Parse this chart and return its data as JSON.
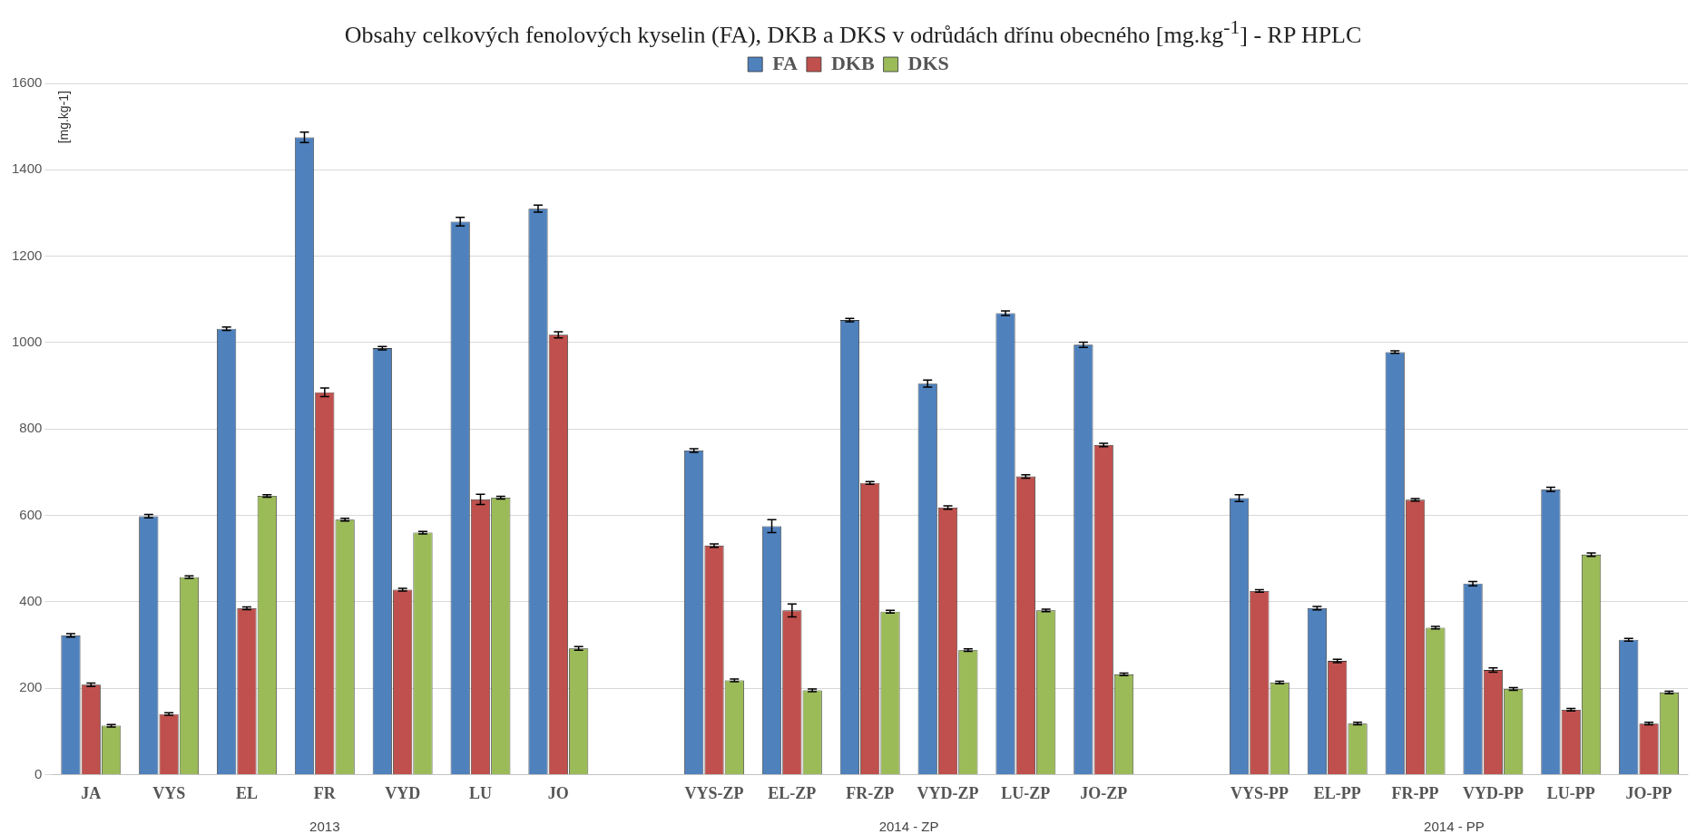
{
  "chart_data": {
    "type": "bar",
    "title": "Obsahy celkových fenolových kyselin (FA), DKB a DKS v odrůdách dřínu obecného [mg.kg$^{-1}$] - RP HPLC",
    "ylabel": "[mg.kg-1]",
    "categories": [
      "JA",
      "VYS",
      "EL",
      "FR",
      "VYD",
      "LU",
      "JO",
      null,
      "VYS-ZP",
      "EL-ZP",
      "FR-ZP",
      "VYD-ZP",
      "LU-ZP",
      "JO-ZP",
      null,
      "VYS-PP",
      "EL-PP",
      "FR-PP",
      "VYD-PP",
      "LU-PP",
      "JO-PP"
    ],
    "series": [
      {
        "name": "FA",
        "color": "#4f81bd",
        "values": [
          322,
          598,
          1032,
          1475,
          987,
          1280,
          1310,
          null,
          750,
          575,
          1052,
          905,
          1068,
          995,
          null,
          640,
          385,
          978,
          442,
          660,
          312
        ],
        "errors": [
          4,
          4,
          4,
          12,
          4,
          10,
          8,
          null,
          4,
          15,
          4,
          8,
          5,
          6,
          null,
          8,
          4,
          3,
          5,
          5,
          3
        ]
      },
      {
        "name": "DKB",
        "color": "#c0504d",
        "values": [
          208,
          140,
          385,
          885,
          428,
          637,
          1018,
          null,
          530,
          380,
          675,
          618,
          690,
          763,
          null,
          425,
          263,
          636,
          242,
          150,
          118
        ],
        "errors": [
          4,
          3,
          3,
          10,
          3,
          12,
          7,
          null,
          4,
          15,
          3,
          4,
          4,
          4,
          null,
          3,
          4,
          3,
          5,
          3,
          3
        ]
      },
      {
        "name": "DKS",
        "color": "#9bbb59",
        "values": [
          113,
          457,
          645,
          590,
          560,
          641,
          292,
          null,
          218,
          195,
          377,
          288,
          380,
          232,
          null,
          213,
          118,
          340,
          198,
          509,
          190
        ],
        "errors": [
          3,
          3,
          3,
          3,
          3,
          3,
          4,
          null,
          3,
          3,
          3,
          3,
          3,
          3,
          null,
          3,
          3,
          3,
          3,
          4,
          3
        ]
      }
    ],
    "ylim": [
      0,
      1600
    ],
    "yticks": [
      0,
      200,
      400,
      600,
      800,
      1000,
      1200,
      1400,
      1600
    ],
    "grid": "y",
    "legend": "top",
    "annotations": [
      "2013",
      "2014 - ZP",
      "2014 - PP"
    ]
  }
}
